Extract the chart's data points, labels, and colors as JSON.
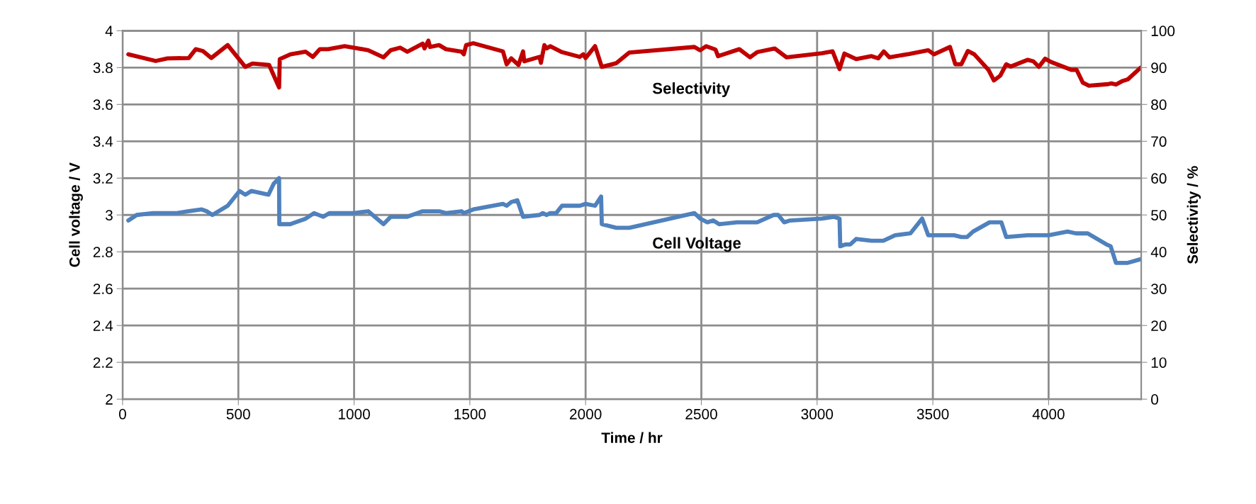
{
  "chart_data": {
    "type": "line",
    "xlabel": "Time / hr",
    "ylabel": "Cell voltage / V",
    "y2label": "Selectivity / %",
    "xlim": [
      0,
      4400
    ],
    "xticks": [
      0,
      500,
      1000,
      1500,
      2000,
      2500,
      3000,
      3500,
      4000
    ],
    "ylim": [
      2,
      4
    ],
    "yticks": [
      2,
      {
        "value": 2.2,
        "label": "2.2"
      },
      {
        "value": 2.4,
        "label": "2.4"
      },
      {
        "value": 2.6,
        "label": "2.6"
      },
      {
        "value": 2.8,
        "label": "2.8"
      },
      3,
      {
        "value": 3.2,
        "label": "3.2"
      },
      {
        "value": 3.4,
        "label": "3.4"
      },
      {
        "value": 3.6,
        "label": "3.6"
      },
      {
        "value": 3.8,
        "label": "3.8"
      },
      4
    ],
    "y2lim": [
      0,
      100
    ],
    "y2ticks": [
      0,
      10,
      20,
      30,
      40,
      50,
      60,
      70,
      80,
      90,
      100
    ],
    "grid": true,
    "legend": false,
    "marker": "none",
    "line_style": "solid",
    "series": [
      {
        "name": "Selectivity",
        "axis": "y2",
        "color": "#c00000",
        "x": [
          25,
          143,
          194,
          286,
          316,
          347,
          383,
          454,
          530,
          561,
          633,
          676,
          679,
          725,
          791,
          822,
          852,
          888,
          959,
          1000,
          1061,
          1127,
          1158,
          1199,
          1230,
          1296,
          1304,
          1321,
          1328,
          1367,
          1397,
          1464,
          1474,
          1484,
          1515,
          1643,
          1659,
          1679,
          1710,
          1730,
          1735,
          1801,
          1807,
          1822,
          1832,
          1847,
          1898,
          1975,
          1990,
          2000,
          2041,
          2070,
          2133,
          2189,
          2470,
          2495,
          2521,
          2561,
          2572,
          2664,
          2710,
          2741,
          2817,
          2868,
          3021,
          3067,
          3097,
          3118,
          3169,
          3235,
          3264,
          3288,
          3312,
          3398,
          3480,
          3505,
          3574,
          3597,
          3623,
          3651,
          3679,
          3740,
          3764,
          3791,
          3817,
          3837,
          3909,
          3934,
          3958,
          3985,
          4011,
          4098,
          4121,
          4148,
          4174,
          4256,
          4271,
          4291,
          4317,
          4342,
          4398
        ],
        "values": [
          93.6,
          91.8,
          92.5,
          92.6,
          95.0,
          94.5,
          92.6,
          96.1,
          90.2,
          91.1,
          90.7,
          84.6,
          92.3,
          93.6,
          94.3,
          92.9,
          95.0,
          95.0,
          95.8,
          95.4,
          94.7,
          92.8,
          94.7,
          95.4,
          94.3,
          96.5,
          95.2,
          97.3,
          95.6,
          96.1,
          95.0,
          94.3,
          93.6,
          96.1,
          96.6,
          94.4,
          90.9,
          92.5,
          90.7,
          94.4,
          91.7,
          92.9,
          91.3,
          96.1,
          95.2,
          95.8,
          94.2,
          92.9,
          93.6,
          92.6,
          95.8,
          90.2,
          91.2,
          94.1,
          95.6,
          94.7,
          95.8,
          94.9,
          93.1,
          95.0,
          92.8,
          94.2,
          95.2,
          92.8,
          93.9,
          94.4,
          89.6,
          93.8,
          92.3,
          93.1,
          92.5,
          94.4,
          92.8,
          93.7,
          94.7,
          93.6,
          95.6,
          90.9,
          90.9,
          94.5,
          93.6,
          89.4,
          86.5,
          87.8,
          90.9,
          90.3,
          92.1,
          91.7,
          90.2,
          92.4,
          91.5,
          89.4,
          89.4,
          85.9,
          85.1,
          85.5,
          85.7,
          85.4,
          86.3,
          86.8,
          90.0
        ]
      },
      {
        "name": "Cell Voltage",
        "color": "#4f81bd",
        "x": [
          25,
          61,
          133,
          235,
          281,
          342,
          363,
          388,
          454,
          505,
          530,
          556,
          630,
          653,
          676,
          677,
          704,
          724,
          791,
          827,
          867,
          893,
          1000,
          1061,
          1127,
          1158,
          1230,
          1296,
          1367,
          1397,
          1464,
          1474,
          1515,
          1643,
          1659,
          1679,
          1705,
          1730,
          1801,
          1815,
          1832,
          1847,
          1873,
          1898,
          1975,
          2000,
          2041,
          2067,
          2070,
          2133,
          2189,
          2470,
          2495,
          2526,
          2551,
          2577,
          2654,
          2741,
          2812,
          2832,
          2858,
          2883,
          3021,
          3072,
          3097,
          3100,
          3123,
          3143,
          3169,
          3235,
          3286,
          3337,
          3403,
          3454,
          3480,
          3592,
          3623,
          3648,
          3674,
          3745,
          3796,
          3817,
          3909,
          4000,
          4082,
          4118,
          4169,
          4250,
          4268,
          4291,
          4342,
          4398
        ],
        "values": [
          2.97,
          3.0,
          3.01,
          3.01,
          3.02,
          3.03,
          3.02,
          3.0,
          3.05,
          3.13,
          3.11,
          3.13,
          3.11,
          3.17,
          3.2,
          2.95,
          2.95,
          2.95,
          2.98,
          3.01,
          2.99,
          3.01,
          3.01,
          3.02,
          2.95,
          2.99,
          2.99,
          3.02,
          3.02,
          3.01,
          3.02,
          3.01,
          3.03,
          3.06,
          3.05,
          3.07,
          3.08,
          2.99,
          3.0,
          3.01,
          3.0,
          3.01,
          3.01,
          3.05,
          3.05,
          3.06,
          3.05,
          3.1,
          2.95,
          2.93,
          2.93,
          3.01,
          2.98,
          2.96,
          2.97,
          2.95,
          2.96,
          2.96,
          3.0,
          3.0,
          2.96,
          2.97,
          2.98,
          2.99,
          2.98,
          2.83,
          2.84,
          2.84,
          2.87,
          2.86,
          2.86,
          2.89,
          2.9,
          2.98,
          2.89,
          2.89,
          2.88,
          2.88,
          2.91,
          2.96,
          2.96,
          2.88,
          2.89,
          2.89,
          2.91,
          2.9,
          2.9,
          2.84,
          2.83,
          2.74,
          2.74,
          2.76
        ]
      }
    ]
  }
}
